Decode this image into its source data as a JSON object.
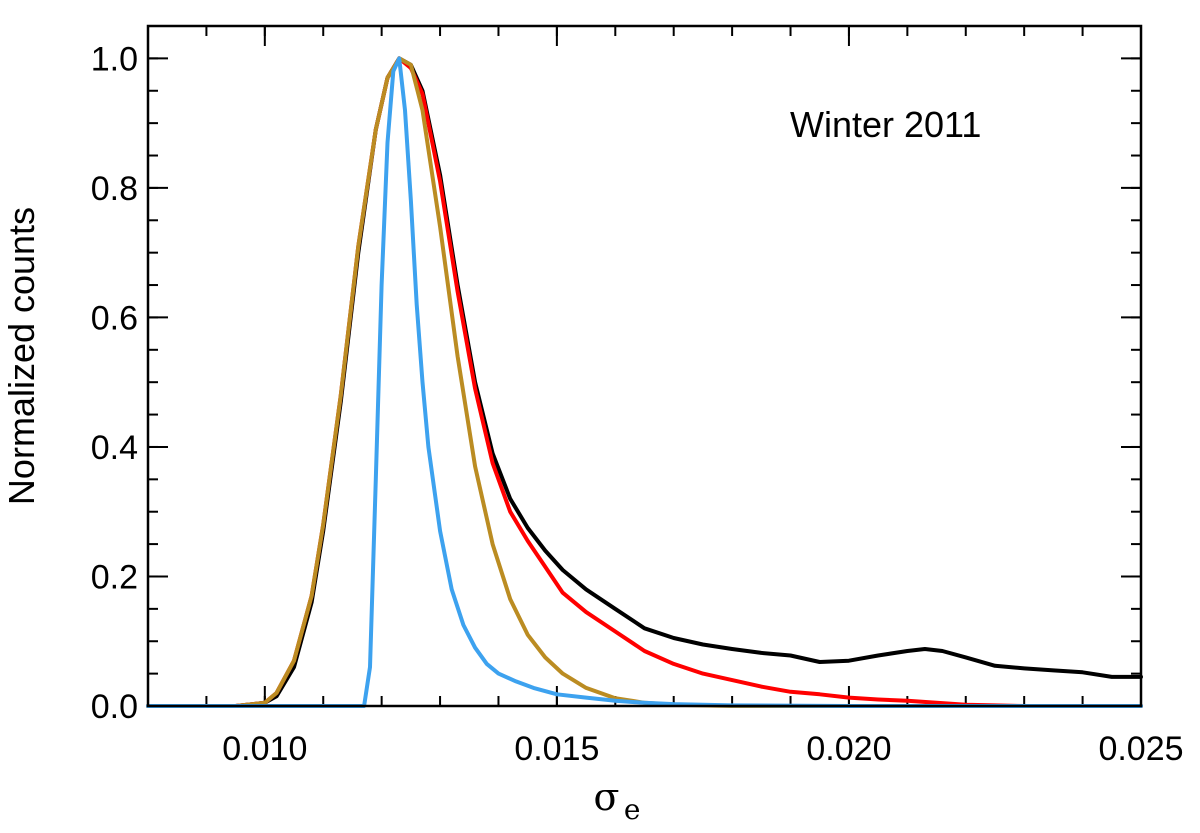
{
  "chart_data": {
    "type": "line",
    "annotation": "Winter 2011",
    "xlabel": "σe",
    "xlabel_symbol": "σ",
    "xlabel_subscript": "e",
    "ylabel": "Normalized counts",
    "xlim": [
      0.008,
      0.025
    ],
    "ylim": [
      0.0,
      1.05
    ],
    "x_ticks": [
      0.01,
      0.015,
      0.02,
      0.025
    ],
    "x_tick_labels": [
      "0.010",
      "0.015",
      "0.020",
      "0.025"
    ],
    "x_minor_step": 0.001,
    "y_ticks": [
      0.0,
      0.2,
      0.4,
      0.6,
      0.8,
      1.0
    ],
    "y_tick_labels": [
      "0.0",
      "0.2",
      "0.4",
      "0.6",
      "0.8",
      "1.0"
    ],
    "y_minor_step": 0.05,
    "grid": false,
    "series": [
      {
        "color": "#000000",
        "x": [
          0.008,
          0.0095,
          0.01,
          0.0102,
          0.0105,
          0.0108,
          0.011,
          0.0113,
          0.0116,
          0.0119,
          0.0121,
          0.0123,
          0.0125,
          0.0127,
          0.013,
          0.0133,
          0.0136,
          0.0139,
          0.0142,
          0.0145,
          0.0148,
          0.0151,
          0.0155,
          0.016,
          0.0165,
          0.017,
          0.0175,
          0.018,
          0.0185,
          0.019,
          0.0195,
          0.02,
          0.0205,
          0.021,
          0.0213,
          0.0216,
          0.022,
          0.0225,
          0.023,
          0.0235,
          0.024,
          0.0245,
          0.025
        ],
        "y": [
          0.0,
          0.0,
          0.005,
          0.015,
          0.06,
          0.16,
          0.27,
          0.47,
          0.7,
          0.89,
          0.97,
          1.0,
          0.99,
          0.95,
          0.82,
          0.65,
          0.5,
          0.39,
          0.32,
          0.275,
          0.24,
          0.21,
          0.18,
          0.15,
          0.12,
          0.105,
          0.095,
          0.088,
          0.082,
          0.078,
          0.068,
          0.07,
          0.078,
          0.085,
          0.088,
          0.085,
          0.075,
          0.062,
          0.058,
          0.055,
          0.052,
          0.045,
          0.045
        ]
      },
      {
        "color": "#ff0000",
        "x": [
          0.008,
          0.0095,
          0.01,
          0.0102,
          0.0105,
          0.0108,
          0.011,
          0.0113,
          0.0116,
          0.0119,
          0.0121,
          0.0123,
          0.0125,
          0.0127,
          0.013,
          0.0133,
          0.0136,
          0.0139,
          0.0142,
          0.0145,
          0.0148,
          0.0151,
          0.0155,
          0.016,
          0.0165,
          0.017,
          0.0175,
          0.018,
          0.0185,
          0.019,
          0.0195,
          0.02,
          0.0205,
          0.021,
          0.0215,
          0.022,
          0.0225,
          0.023,
          0.024,
          0.025
        ],
        "y": [
          0.0,
          0.0,
          0.005,
          0.02,
          0.07,
          0.17,
          0.28,
          0.48,
          0.71,
          0.89,
          0.97,
          1.0,
          0.985,
          0.945,
          0.81,
          0.64,
          0.49,
          0.375,
          0.3,
          0.255,
          0.215,
          0.175,
          0.145,
          0.115,
          0.085,
          0.065,
          0.05,
          0.04,
          0.03,
          0.022,
          0.018,
          0.013,
          0.01,
          0.008,
          0.005,
          0.002,
          0.001,
          0.0,
          0.0,
          0.0
        ]
      },
      {
        "color": "#bb8c22",
        "x": [
          0.008,
          0.0095,
          0.01,
          0.0102,
          0.0105,
          0.0108,
          0.011,
          0.0113,
          0.0116,
          0.0119,
          0.0121,
          0.0123,
          0.0125,
          0.0127,
          0.013,
          0.0133,
          0.0136,
          0.0139,
          0.0142,
          0.0145,
          0.0148,
          0.0151,
          0.0155,
          0.016,
          0.0165,
          0.017,
          0.0175,
          0.018,
          0.019,
          0.02,
          0.022,
          0.025
        ],
        "y": [
          0.0,
          0.0,
          0.005,
          0.02,
          0.07,
          0.17,
          0.28,
          0.48,
          0.71,
          0.89,
          0.97,
          1.0,
          0.99,
          0.92,
          0.74,
          0.54,
          0.37,
          0.25,
          0.165,
          0.11,
          0.075,
          0.05,
          0.028,
          0.012,
          0.005,
          0.002,
          0.001,
          0.0,
          0.0,
          0.0,
          0.0,
          0.0
        ]
      },
      {
        "color": "#3da2ef",
        "x": [
          0.008,
          0.011,
          0.0117,
          0.0118,
          0.0119,
          0.012,
          0.0121,
          0.0122,
          0.0123,
          0.0124,
          0.0125,
          0.0126,
          0.0127,
          0.0128,
          0.013,
          0.0132,
          0.0134,
          0.0136,
          0.0138,
          0.014,
          0.0143,
          0.0146,
          0.015,
          0.0155,
          0.016,
          0.0165,
          0.017,
          0.018,
          0.02,
          0.025
        ],
        "y": [
          0.0,
          0.0,
          0.0,
          0.06,
          0.35,
          0.65,
          0.87,
          0.98,
          1.0,
          0.92,
          0.78,
          0.62,
          0.5,
          0.4,
          0.27,
          0.18,
          0.125,
          0.09,
          0.065,
          0.05,
          0.038,
          0.028,
          0.018,
          0.013,
          0.008,
          0.005,
          0.003,
          0.001,
          0.0,
          0.0
        ]
      }
    ]
  }
}
